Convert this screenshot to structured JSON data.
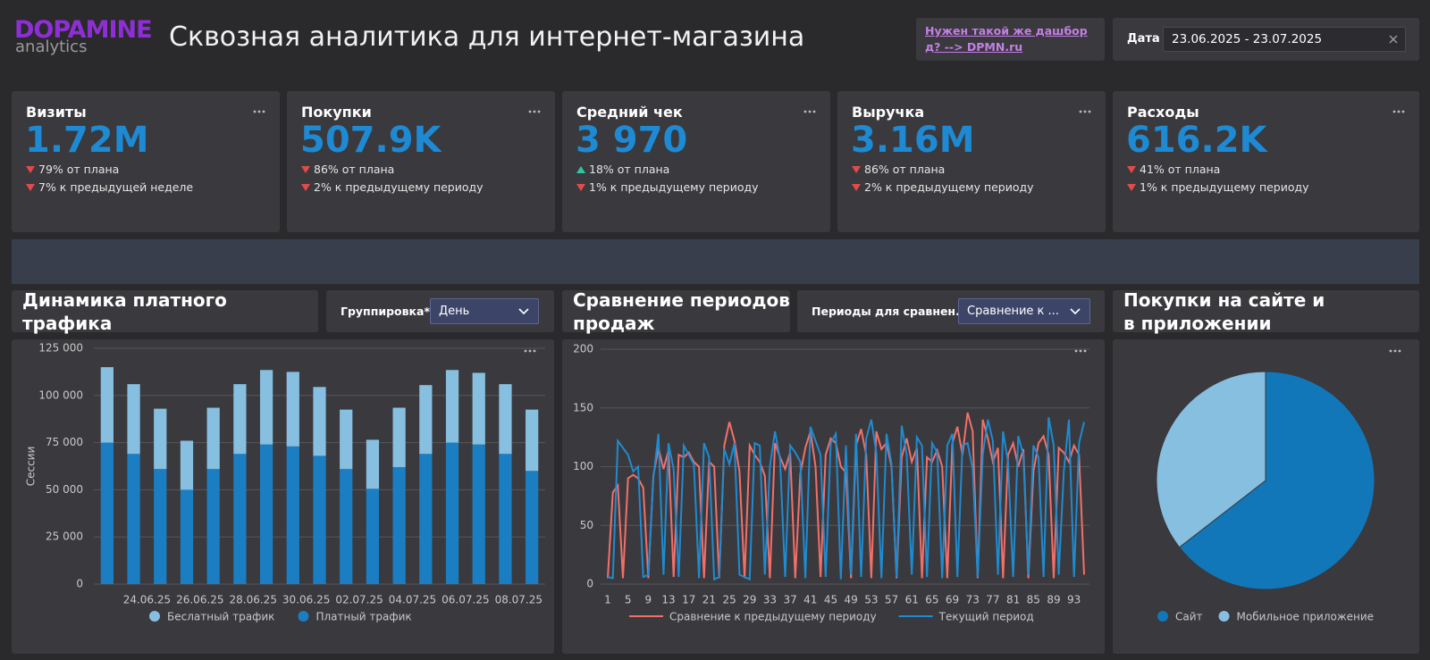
{
  "header": {
    "logo": "DOPAMINE",
    "logo_sub": "analytics",
    "title": "Сквозная аналитика для интернет-магазина",
    "link": "Нужен такой же дашборд? --> DPMN.ru",
    "date_label": "Дата",
    "date_value": "23.06.2025 - 23.07.2025"
  },
  "kpis": [
    {
      "label": "Визиты",
      "value": "1.72M",
      "notes": [
        {
          "text": "79% от плана",
          "trend": "down"
        },
        {
          "text": "7% к предыдущей неделе",
          "trend": "down"
        }
      ]
    },
    {
      "label": "Покупки",
      "value": "507.9K",
      "notes": [
        {
          "text": "86% от плана",
          "trend": "down"
        },
        {
          "text": "2% к предыдущему периоду",
          "trend": "down"
        }
      ]
    },
    {
      "label": "Средний чек",
      "value": "3 970",
      "notes": [
        {
          "text": "18% от плана",
          "trend": "up"
        },
        {
          "text": "1% к предыдущему периоду",
          "trend": "down"
        }
      ]
    },
    {
      "label": "Выручка",
      "value": "3.16M",
      "notes": [
        {
          "text": "86% от плана",
          "trend": "down"
        },
        {
          "text": "2% к предыдущему периоду",
          "trend": "down"
        }
      ]
    },
    {
      "label": "Расходы",
      "value": "616.2K",
      "notes": [
        {
          "text": "41% от плана",
          "trend": "down"
        },
        {
          "text": "1% к предыдущему периоду",
          "trend": "down"
        }
      ]
    }
  ],
  "controls": {
    "grouping_label": "Группировка*",
    "grouping_value": "День",
    "periods_label": "Периоды для сравнен...",
    "periods_value": "Сравнение к ..."
  },
  "chart_data": [
    {
      "type": "stacked_bar",
      "title": "Динамика платного трафика",
      "y_label": "Сессии",
      "categories": [
        null,
        "24.06.25",
        null,
        "26.06.25",
        null,
        "28.06.25",
        null,
        "30.06.25",
        null,
        "02.07.25",
        null,
        "04.07.25",
        null,
        "06.07.25",
        null,
        "08.07.25",
        null
      ],
      "series": [
        {
          "name": "Беслатный трафик",
          "color": "#86bfdf",
          "values": [
            40000,
            37000,
            32000,
            26000,
            32500,
            37000,
            39500,
            39500,
            36500,
            31500,
            26000,
            31500,
            36500,
            38500,
            38000,
            37000,
            32500
          ]
        },
        {
          "name": "Платный трафик",
          "color": "#1b7ec2",
          "values": [
            75000,
            69000,
            61000,
            50000,
            61000,
            69000,
            74000,
            73000,
            68000,
            61000,
            50500,
            62000,
            69000,
            75000,
            74000,
            69000,
            60000
          ]
        }
      ],
      "ylim": [
        0,
        125000
      ],
      "yticks": [
        {
          "value": 0,
          "label": "0"
        },
        {
          "value": 25000,
          "label": "25 000"
        },
        {
          "value": 50000,
          "label": "50 000"
        },
        {
          "value": 75000,
          "label": "75 000"
        },
        {
          "value": 100000,
          "label": "100 000"
        },
        {
          "value": 125000,
          "label": "125 000"
        }
      ],
      "grid": true
    },
    {
      "type": "line",
      "title": "Сравнение периодов продаж",
      "x": [
        1,
        2,
        3,
        4,
        5,
        6,
        7,
        8,
        9,
        10,
        11,
        12,
        13,
        14,
        15,
        16,
        17,
        18,
        19,
        20,
        21,
        22,
        23,
        24,
        25,
        26,
        27,
        28,
        29,
        30,
        31,
        32,
        33,
        34,
        35,
        36,
        37,
        38,
        39,
        40,
        41,
        42,
        43,
        44,
        45,
        46,
        47,
        48,
        49,
        50,
        51,
        52,
        53,
        54,
        55,
        56,
        57,
        58,
        59,
        60,
        61,
        62,
        63,
        64,
        65,
        66,
        67,
        68,
        69,
        70,
        71,
        72,
        73,
        74,
        75,
        76,
        77,
        78,
        79,
        80,
        81,
        82,
        83,
        84,
        85,
        86,
        87,
        88,
        89,
        90,
        91,
        92,
        93,
        94,
        95
      ],
      "series": [
        {
          "name": "Сравнение к предыдущему периоду",
          "color": "#f2706a",
          "values": [
            5,
            78,
            84,
            5,
            90,
            93,
            90,
            82,
            5,
            92,
            116,
            98,
            114,
            6,
            110,
            108,
            112,
            104,
            100,
            5,
            104,
            100,
            5,
            118,
            138,
            122,
            96,
            5,
            118,
            110,
            104,
            92,
            5,
            120,
            108,
            98,
            112,
            5,
            94,
            116,
            130,
            100,
            6,
            110,
            124,
            120,
            100,
            95,
            5,
            118,
            132,
            110,
            5,
            130,
            115,
            120,
            100,
            5,
            108,
            124,
            104,
            116,
            5,
            108,
            104,
            114,
            100,
            5,
            120,
            134,
            110,
            146,
            130,
            5,
            140,
            124,
            104,
            116,
            5,
            110,
            120,
            100,
            115,
            5,
            96,
            120,
            126,
            110,
            5,
            116,
            112,
            104,
            118,
            110,
            8
          ]
        },
        {
          "name": "Текущий период",
          "color": "#1f8bd0",
          "values": [
            6,
            5,
            122,
            116,
            110,
            96,
            100,
            6,
            8,
            90,
            128,
            8,
            120,
            98,
            6,
            118,
            110,
            102,
            5,
            120,
            108,
            4,
            6,
            115,
            102,
            120,
            8,
            6,
            4,
            120,
            118,
            8,
            100,
            130,
            106,
            6,
            118,
            112,
            104,
            5,
            134,
            122,
            110,
            6,
            120,
            128,
            4,
            118,
            8,
            128,
            6,
            124,
            140,
            112,
            5,
            128,
            102,
            6,
            135,
            110,
            8,
            125,
            118,
            6,
            120,
            112,
            5,
            118,
            128,
            6,
            118,
            120,
            98,
            6,
            110,
            140,
            122,
            8,
            130,
            104,
            6,
            126,
            110,
            8,
            118,
            108,
            6,
            142,
            118,
            8,
            96,
            140,
            6,
            120,
            138
          ]
        }
      ],
      "xlim": [
        1,
        95
      ],
      "xticks": [
        1,
        5,
        9,
        13,
        17,
        21,
        25,
        29,
        33,
        37,
        41,
        45,
        49,
        53,
        57,
        61,
        65,
        69,
        73,
        77,
        81,
        85,
        89,
        93
      ],
      "ylim": [
        0,
        200
      ],
      "yticks": [
        0,
        50,
        100,
        150,
        200
      ],
      "grid": true
    },
    {
      "type": "pie",
      "title": "Покупки на сайте и в приложении",
      "categories": [
        "Сайт",
        "Мобильное приложение"
      ],
      "values": [
        64.5,
        35.5
      ],
      "colors": [
        "#1177b8",
        "#86bfdf"
      ]
    }
  ]
}
